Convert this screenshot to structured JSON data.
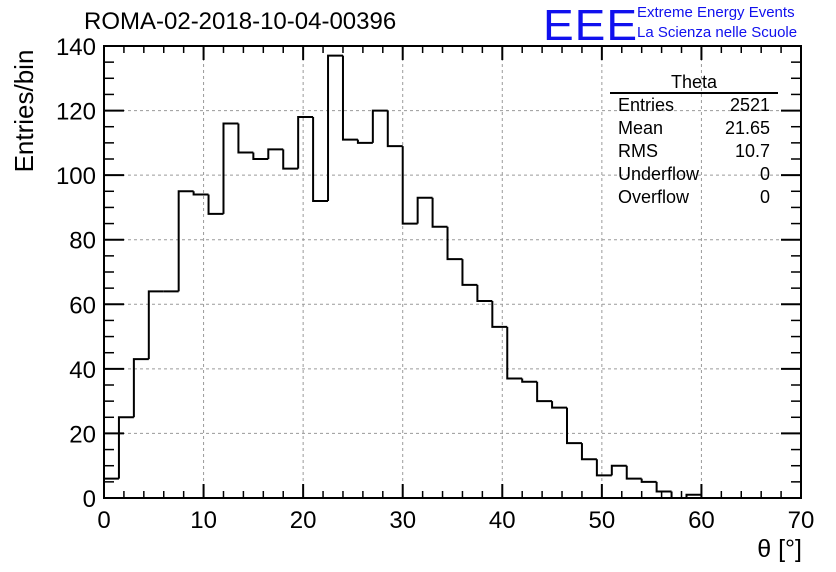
{
  "title": "ROMA-02-2018-10-04-00396",
  "logo": {
    "mark": "EEE",
    "line1": "Extreme Energy Events",
    "line2": "La Scienza nelle Scuole",
    "color": "#1010ee"
  },
  "stats": {
    "name": "Theta",
    "rows": [
      {
        "label": "Entries",
        "value": "2521"
      },
      {
        "label": "Mean",
        "value": "21.65"
      },
      {
        "label": "RMS",
        "value": "10.7"
      },
      {
        "label": "Underflow",
        "value": "0"
      },
      {
        "label": "Overflow",
        "value": "0"
      }
    ]
  },
  "chart_data": {
    "type": "histogram",
    "title": "ROMA-02-2018-10-04-00396",
    "xlabel": "θ [°]",
    "ylabel": "Entries/bin",
    "xlim": [
      0,
      70
    ],
    "ylim": [
      0,
      140
    ],
    "xticks": [
      0,
      10,
      20,
      30,
      40,
      50,
      60,
      70
    ],
    "yticks": [
      0,
      20,
      40,
      60,
      80,
      100,
      120,
      140
    ],
    "grid": true,
    "bin_width": 1.5,
    "bin_edges_start": 0,
    "values": [
      6,
      25,
      43,
      64,
      64,
      95,
      94,
      88,
      116,
      107,
      105,
      108,
      102,
      118,
      92,
      137,
      111,
      110,
      120,
      109,
      85,
      93,
      84,
      74,
      66,
      61,
      53,
      37,
      36,
      30,
      28,
      17,
      12,
      7,
      10,
      6,
      5,
      2,
      0,
      1
    ]
  }
}
